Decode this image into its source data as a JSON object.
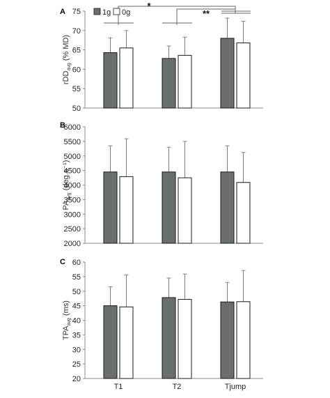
{
  "figure": {
    "legend": [
      "1g",
      "0g"
    ],
    "categories": [
      "T1",
      "T2",
      "Tjump"
    ],
    "colors": {
      "bar_1g": "#6b6e6e",
      "bar_0g": "#ffffff",
      "edge": "#1a1a1a",
      "error": "#808080"
    }
  },
  "chart_data": [
    {
      "type": "bar",
      "panel": "A",
      "ylabel_main": "rDD",
      "ylabel_sub": "avg",
      "ylabel_unit": "(% MD)",
      "categories": [
        "T1",
        "T2",
        "Tjump"
      ],
      "series": [
        {
          "name": "1g",
          "values": [
            64.3,
            62.8,
            68.0
          ],
          "errors": [
            3.8,
            3.2,
            5.2
          ]
        },
        {
          "name": "0g",
          "values": [
            65.5,
            63.6,
            66.8
          ],
          "errors": [
            4.5,
            4.7,
            5.6
          ]
        }
      ],
      "ylim": [
        50,
        75
      ],
      "yticks": [
        50,
        55,
        60,
        65,
        70,
        75
      ],
      "significance": [
        {
          "label": "*",
          "from": "T1",
          "to": "Tjump"
        },
        {
          "label": "**",
          "from": "T2",
          "to": "Tjump"
        }
      ]
    },
    {
      "type": "bar",
      "panel": "B",
      "ylabel_main": "PA",
      "ylabel_sub": "avg",
      "ylabel_unit": "(deg.s⁻¹)",
      "categories": [
        "T1",
        "T2",
        "Tjump"
      ],
      "series": [
        {
          "name": "1g",
          "values": [
            4450,
            4450,
            4450
          ],
          "errors": [
            900,
            850,
            900
          ]
        },
        {
          "name": "0g",
          "values": [
            4290,
            4250,
            4090
          ],
          "errors": [
            1300,
            1250,
            1030
          ]
        }
      ],
      "ylim": [
        2000,
        6000
      ],
      "yticks": [
        2000,
        2500,
        3000,
        3500,
        4000,
        4500,
        5000,
        5500,
        6000
      ]
    },
    {
      "type": "bar",
      "panel": "C",
      "ylabel_main": "TPA",
      "ylabel_sub": "avg",
      "ylabel_unit": "(ms)",
      "categories": [
        "T1",
        "T2",
        "Tjump"
      ],
      "series": [
        {
          "name": "1g",
          "values": [
            45.0,
            47.8,
            46.3
          ],
          "errors": [
            6.5,
            6.7,
            6.7
          ]
        },
        {
          "name": "0g",
          "values": [
            44.6,
            47.2,
            46.4
          ],
          "errors": [
            11.0,
            8.7,
            10.7
          ]
        }
      ],
      "ylim": [
        20,
        60
      ],
      "yticks": [
        20,
        25,
        30,
        35,
        40,
        45,
        50,
        55,
        60
      ]
    }
  ]
}
